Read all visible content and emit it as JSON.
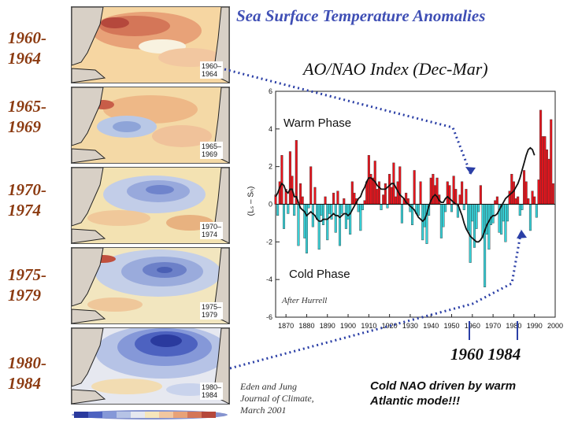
{
  "title": "Sea Surface Temperature Anomalies",
  "periods": [
    {
      "label": "1960-\n1964",
      "map_label": "1960–\n1964"
    },
    {
      "label": "1965-\n1969",
      "map_label": "1965–\n1969"
    },
    {
      "label": "1970-\n1974",
      "map_label": "1970–\n1974"
    },
    {
      "label": "1975-\n1979",
      "map_label": "1975–\n1979"
    },
    {
      "label": "1980-\n1984",
      "map_label": "1980–\n1984"
    }
  ],
  "phases": {
    "warm": "Warm Phase",
    "cold": "Cold Phase"
  },
  "credit": "After Hurrell",
  "marked_years": "1960  1984",
  "citation": "Eden and  Jung\nJournal of Climate,\nMarch 2001",
  "note": "Cold NAO driven by warm\nAtlantic mode!!!",
  "colors": {
    "positive": "#e8141c",
    "negative": "#36d1d8",
    "arrow": "#2b3fa6",
    "title": "#3f4fb5",
    "period": "#8b3a10"
  },
  "chart_data": {
    "type": "area",
    "title": "AO/NAO Index (Dec-Mar)",
    "xlabel": "",
    "ylabel": "(Lₛ – Sₙ)",
    "xlim": [
      1865,
      2000
    ],
    "ylim": [
      -6,
      6
    ],
    "xticks": [
      1870,
      1880,
      1890,
      1900,
      1910,
      1920,
      1930,
      1940,
      1950,
      1960,
      1970,
      1980,
      1990,
      2000
    ],
    "yticks": [
      -6,
      -4,
      -2,
      0,
      2,
      4,
      6
    ],
    "series": [
      {
        "name": "winter index",
        "x_start": 1865,
        "values": [
          0.5,
          -0.6,
          1.2,
          2.6,
          -1.3,
          0.8,
          -0.5,
          2.8,
          1.5,
          -0.6,
          3.4,
          -2.2,
          1.1,
          0.4,
          -1.8,
          -2.6,
          -0.2,
          2.0,
          -1.2,
          0.9,
          -0.8,
          -2.4,
          -0.6,
          -1.1,
          0.4,
          -1.9,
          -0.5,
          -0.8,
          0.6,
          -1.5,
          0.7,
          -2.2,
          -0.5,
          0.3,
          -1.3,
          -0.8,
          -1.6,
          1.2,
          0.6,
          0.3,
          -0.4,
          -1.4,
          -0.3,
          0.2,
          1.2,
          2.6,
          1.6,
          1.4,
          2.3,
          0.8,
          1.2,
          -0.3,
          0.5,
          1.1,
          -0.2,
          1.6,
          0.9,
          2.2,
          0.4,
          1.2,
          2.0,
          -1.0,
          0.3,
          0.6,
          0.3,
          -0.4,
          -1.1,
          1.8,
          -0.5,
          -0.6,
          1.2,
          -1.9,
          -1.2,
          -2.1,
          -0.6,
          1.4,
          1.6,
          1.0,
          1.4,
          0.5,
          -1.8,
          -1.2,
          -0.4,
          1.2,
          1.0,
          -0.4,
          1.5,
          0.8,
          -0.7,
          0.5,
          1.2,
          -0.3,
          0.8,
          -1.4,
          -3.1,
          -0.9,
          -2.3,
          -1.3,
          -0.4,
          1.0,
          -1.8,
          -4.4,
          -1.6,
          -2.4,
          -1.1,
          -1.0,
          0.2,
          0.4,
          -1.5,
          -1.6,
          -0.9,
          -2.0,
          -0.9,
          0.7,
          1.6,
          1.2,
          0.3,
          0.4,
          -0.6,
          -0.3,
          1.8,
          1.2,
          0.3,
          -1.4,
          0.7,
          0.4,
          -0.7,
          1.3,
          5.0,
          3.6,
          3.6,
          2.9,
          2.4,
          4.5,
          1.1
        ]
      },
      {
        "name": "smoothed",
        "x_start": 1865,
        "values": [
          0.4,
          0.6,
          0.9,
          1.1,
          1.0,
          0.7,
          0.6,
          0.8,
          0.8,
          0.4,
          0.4,
          0.1,
          -0.2,
          -0.3,
          -0.4,
          -0.6,
          -0.5,
          -0.4,
          -0.5,
          -0.6,
          -0.8,
          -0.9,
          -0.9,
          -0.8,
          -0.8,
          -0.8,
          -0.7,
          -0.6,
          -0.5,
          -0.6,
          -0.6,
          -0.7,
          -0.6,
          -0.5,
          -0.5,
          -0.6,
          -0.5,
          -0.3,
          -0.1,
          0.1,
          0.3,
          0.4,
          0.7,
          0.9,
          1.2,
          1.4,
          1.4,
          1.3,
          1.2,
          1.0,
          0.9,
          0.8,
          0.8,
          0.8,
          0.9,
          1.0,
          1.1,
          1.1,
          0.9,
          0.7,
          0.5,
          0.4,
          0.3,
          0.1,
          0.0,
          -0.1,
          -0.2,
          -0.3,
          -0.5,
          -0.7,
          -0.8,
          -0.9,
          -0.8,
          -0.5,
          -0.1,
          0.2,
          0.4,
          0.5,
          0.4,
          0.2,
          0.1,
          0.1,
          0.3,
          0.4,
          0.3,
          0.2,
          0.1,
          0.0,
          0.0,
          -0.3,
          -0.6,
          -1.0,
          -1.3,
          -1.5,
          -1.7,
          -1.8,
          -1.9,
          -2.0,
          -2.0,
          -1.9,
          -1.7,
          -1.4,
          -1.1,
          -0.9,
          -0.7,
          -0.6,
          -0.6,
          -0.5,
          -0.3,
          -0.1,
          0.1,
          0.3,
          0.4,
          0.5,
          0.6,
          0.7,
          0.9,
          1.1,
          1.4,
          1.8,
          2.2,
          2.6,
          2.9,
          3.0,
          2.9,
          2.6
        ]
      }
    ]
  }
}
